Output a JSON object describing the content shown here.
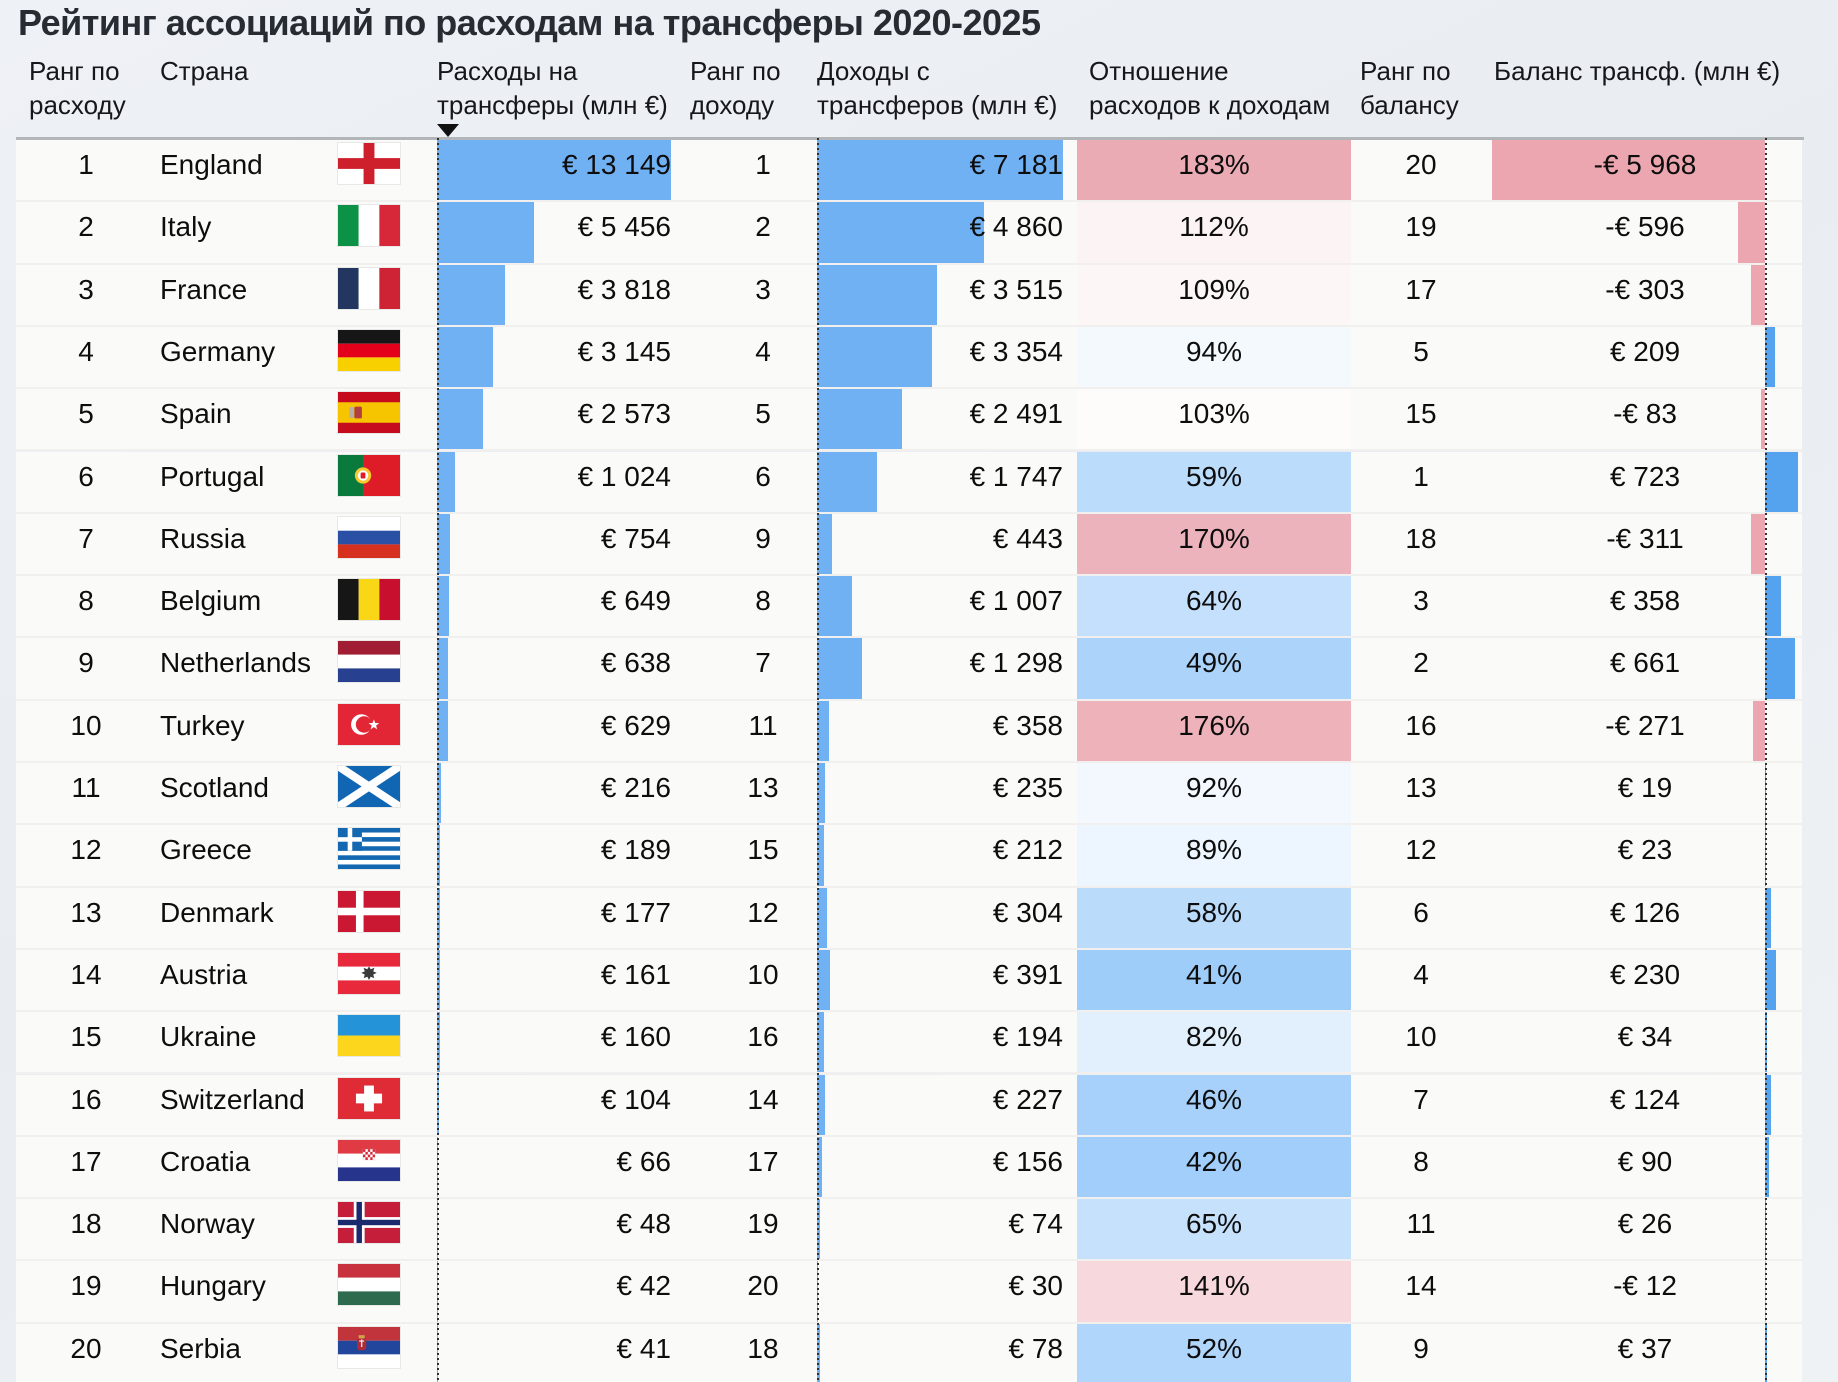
{
  "title": "Рейтинг ассоциаций по расходам на трансферы 2020-2025",
  "header": {
    "c1": {
      "l1": "Ранг по",
      "l2": "расходу"
    },
    "c2": {
      "l1": "Страна",
      "l2": ""
    },
    "c3": {
      "l1": "Расходы на",
      "l2": "трансферы (млн €)"
    },
    "c4": {
      "l1": "Ранг по",
      "l2": "доходу"
    },
    "c5": {
      "l1": "Доходы с",
      "l2": "трансферов (млн €)"
    },
    "c6": {
      "l1": "Отношение",
      "l2": "расходов к доходам"
    },
    "c7": {
      "l1": "Ранг по",
      "l2": "балансу"
    },
    "c8": {
      "l1": "Баланс трансф. (млн €)",
      "l2": ""
    }
  },
  "sort_indicator": {
    "column": "Расходы на трансферы (млн €)",
    "direction": "descending"
  },
  "colors": {
    "bar_blue": "#6fb1f3",
    "balance_positive_blue": "#55a3ef",
    "balance_negative_pink": "#eba6b0",
    "ratio_scale_low_blue": "#9fcdfa",
    "ratio_scale_mid_white": "#ffffff",
    "ratio_scale_high_pink": "#ebabb4",
    "row_background": "#fafbf9",
    "page_background": "#ecf0f4",
    "title_text": "#272c33"
  },
  "chart_data": {
    "type": "table",
    "title": "Рейтинг ассоциаций по расходам на трансферы 2020-2025",
    "columns": [
      "Ранг по расходу",
      "Страна",
      "Расходы на трансферы (млн €)",
      "Ранг по доходу",
      "Доходы с трансферов (млн €)",
      "Отношение расходов к доходам",
      "Ранг по балансу",
      "Баланс трансф. (млн €)"
    ],
    "legend_note": "data bars: expenses and incomes blue from zero; balance diverging bar (pink negative, blue positive); ratio cells blue-white-red color scale",
    "scales": {
      "expense_bar_max": 13149,
      "income_bar_max": 7181,
      "balance_bar_min": -5968,
      "balance_bar_max": 723,
      "balance_axis_fraction": 0.892
    },
    "rows": [
      {
        "rank_expense": "1",
        "country": "England",
        "flag": "england",
        "expense": 13149,
        "expense_label": "€ 13 149",
        "rank_income": "1",
        "income": 7181,
        "income_label": "€ 7 181",
        "ratio": 183,
        "ratio_label": "183%",
        "ratio_color": "#ebabb4",
        "rank_balance": "20",
        "balance": -5968,
        "balance_label": "-€ 5 968"
      },
      {
        "rank_expense": "2",
        "country": "Italy",
        "flag": "italy",
        "expense": 5456,
        "expense_label": "€ 5 456",
        "rank_income": "2",
        "income": 4860,
        "income_label": "€ 4 860",
        "ratio": 112,
        "ratio_label": "112%",
        "ratio_color": "#fcf3f4",
        "rank_balance": "19",
        "balance": -596,
        "balance_label": "-€ 596"
      },
      {
        "rank_expense": "3",
        "country": "France",
        "flag": "france",
        "expense": 3818,
        "expense_label": "€ 3 818",
        "rank_income": "3",
        "income": 3515,
        "income_label": "€ 3 515",
        "ratio": 109,
        "ratio_label": "109%",
        "ratio_color": "#fdf6f7",
        "rank_balance": "17",
        "balance": -303,
        "balance_label": "-€ 303"
      },
      {
        "rank_expense": "4",
        "country": "Germany",
        "flag": "germany",
        "expense": 3145,
        "expense_label": "€ 3 145",
        "rank_income": "4",
        "income": 3354,
        "income_label": "€ 3 354",
        "ratio": 94,
        "ratio_label": "94%",
        "ratio_color": "#f4f9fe",
        "rank_balance": "5",
        "balance": 209,
        "balance_label": "€ 209"
      },
      {
        "rank_expense": "5",
        "country": "Spain",
        "flag": "spain",
        "expense": 2573,
        "expense_label": "€ 2 573",
        "rank_income": "5",
        "income": 2491,
        "income_label": "€ 2 491",
        "ratio": 103,
        "ratio_label": "103%",
        "ratio_color": "#fefbfb",
        "rank_balance": "15",
        "balance": -83,
        "balance_label": "-€ 83"
      },
      {
        "rank_expense": "6",
        "country": "Portugal",
        "flag": "portugal",
        "expense": 1024,
        "expense_label": "€ 1 024",
        "rank_income": "6",
        "income": 1747,
        "income_label": "€ 1 747",
        "ratio": 59,
        "ratio_label": "59%",
        "ratio_color": "#bcdcfc",
        "rank_balance": "1",
        "balance": 723,
        "balance_label": "€ 723"
      },
      {
        "rank_expense": "7",
        "country": "Russia",
        "flag": "russia",
        "expense": 754,
        "expense_label": "€ 754",
        "rank_income": "9",
        "income": 443,
        "income_label": "€ 443",
        "ratio": 170,
        "ratio_label": "170%",
        "ratio_color": "#edb3bc",
        "rank_balance": "18",
        "balance": -311,
        "balance_label": "-€ 311"
      },
      {
        "rank_expense": "8",
        "country": "Belgium",
        "flag": "belgium",
        "expense": 649,
        "expense_label": "€ 649",
        "rank_income": "8",
        "income": 1007,
        "income_label": "€ 1 007",
        "ratio": 64,
        "ratio_label": "64%",
        "ratio_color": "#c4e0fc",
        "rank_balance": "3",
        "balance": 358,
        "balance_label": "€ 358"
      },
      {
        "rank_expense": "9",
        "country": "Netherlands",
        "flag": "netherlands",
        "expense": 638,
        "expense_label": "€ 638",
        "rank_income": "7",
        "income": 1298,
        "income_label": "€ 1 298",
        "ratio": 49,
        "ratio_label": "49%",
        "ratio_color": "#acd3fa",
        "rank_balance": "2",
        "balance": 661,
        "balance_label": "€ 661"
      },
      {
        "rank_expense": "10",
        "country": "Turkey",
        "flag": "turkey",
        "expense": 629,
        "expense_label": "€ 629",
        "rank_income": "11",
        "income": 358,
        "income_label": "€ 358",
        "ratio": 176,
        "ratio_label": "176%",
        "ratio_color": "#edb2ba",
        "rank_balance": "16",
        "balance": -271,
        "balance_label": "-€ 271"
      },
      {
        "rank_expense": "11",
        "country": "Scotland",
        "flag": "scotland",
        "expense": 216,
        "expense_label": "€ 216",
        "rank_income": "13",
        "income": 235,
        "income_label": "€ 235",
        "ratio": 92,
        "ratio_label": "92%",
        "ratio_color": "#f2f8fe",
        "rank_balance": "13",
        "balance": 19,
        "balance_label": "€ 19"
      },
      {
        "rank_expense": "12",
        "country": "Greece",
        "flag": "greece",
        "expense": 189,
        "expense_label": "€ 189",
        "rank_income": "15",
        "income": 212,
        "income_label": "€ 212",
        "ratio": 89,
        "ratio_label": "89%",
        "ratio_color": "#edf6fe",
        "rank_balance": "12",
        "balance": 23,
        "balance_label": "€ 23"
      },
      {
        "rank_expense": "13",
        "country": "Denmark",
        "flag": "denmark",
        "expense": 177,
        "expense_label": "€ 177",
        "rank_income": "12",
        "income": 304,
        "income_label": "€ 304",
        "ratio": 58,
        "ratio_label": "58%",
        "ratio_color": "#bbdbfb",
        "rank_balance": "6",
        "balance": 126,
        "balance_label": "€ 126"
      },
      {
        "rank_expense": "14",
        "country": "Austria",
        "flag": "austria",
        "expense": 161,
        "expense_label": "€ 161",
        "rank_income": "10",
        "income": 391,
        "income_label": "€ 391",
        "ratio": 41,
        "ratio_label": "41%",
        "ratio_color": "#9fcdfa",
        "rank_balance": "4",
        "balance": 230,
        "balance_label": "€ 230"
      },
      {
        "rank_expense": "15",
        "country": "Ukraine",
        "flag": "ukraine",
        "expense": 160,
        "expense_label": "€ 160",
        "rank_income": "16",
        "income": 194,
        "income_label": "€ 194",
        "ratio": 82,
        "ratio_label": "82%",
        "ratio_color": "#e2f0fd",
        "rank_balance": "10",
        "balance": 34,
        "balance_label": "€ 34"
      },
      {
        "rank_expense": "16",
        "country": "Switzerland",
        "flag": "switzerland",
        "expense": 104,
        "expense_label": "€ 104",
        "rank_income": "14",
        "income": 227,
        "income_label": "€ 227",
        "ratio": 46,
        "ratio_label": "46%",
        "ratio_color": "#a7d1fa",
        "rank_balance": "7",
        "balance": 124,
        "balance_label": "€ 124"
      },
      {
        "rank_expense": "17",
        "country": "Croatia",
        "flag": "croatia",
        "expense": 66,
        "expense_label": "€ 66",
        "rank_income": "17",
        "income": 156,
        "income_label": "€ 156",
        "ratio": 42,
        "ratio_label": "42%",
        "ratio_color": "#a1cefa",
        "rank_balance": "8",
        "balance": 90,
        "balance_label": "€ 90"
      },
      {
        "rank_expense": "18",
        "country": "Norway",
        "flag": "norway",
        "expense": 48,
        "expense_label": "€ 48",
        "rank_income": "19",
        "income": 74,
        "income_label": "€ 74",
        "ratio": 65,
        "ratio_label": "65%",
        "ratio_color": "#c6e1fc",
        "rank_balance": "11",
        "balance": 26,
        "balance_label": "€ 26"
      },
      {
        "rank_expense": "19",
        "country": "Hungary",
        "flag": "hungary",
        "expense": 42,
        "expense_label": "€ 42",
        "rank_income": "20",
        "income": 30,
        "income_label": "€ 30",
        "ratio": 141,
        "ratio_label": "141%",
        "ratio_color": "#f6d8dd",
        "rank_balance": "14",
        "balance": -12,
        "balance_label": "-€ 12"
      },
      {
        "rank_expense": "20",
        "country": "Serbia",
        "flag": "serbia",
        "expense": 41,
        "expense_label": "€ 41",
        "rank_income": "18",
        "income": 78,
        "income_label": "€ 78",
        "ratio": 52,
        "ratio_label": "52%",
        "ratio_color": "#b1d6fb",
        "rank_balance": "9",
        "balance": 37,
        "balance_label": "€ 37"
      }
    ]
  }
}
